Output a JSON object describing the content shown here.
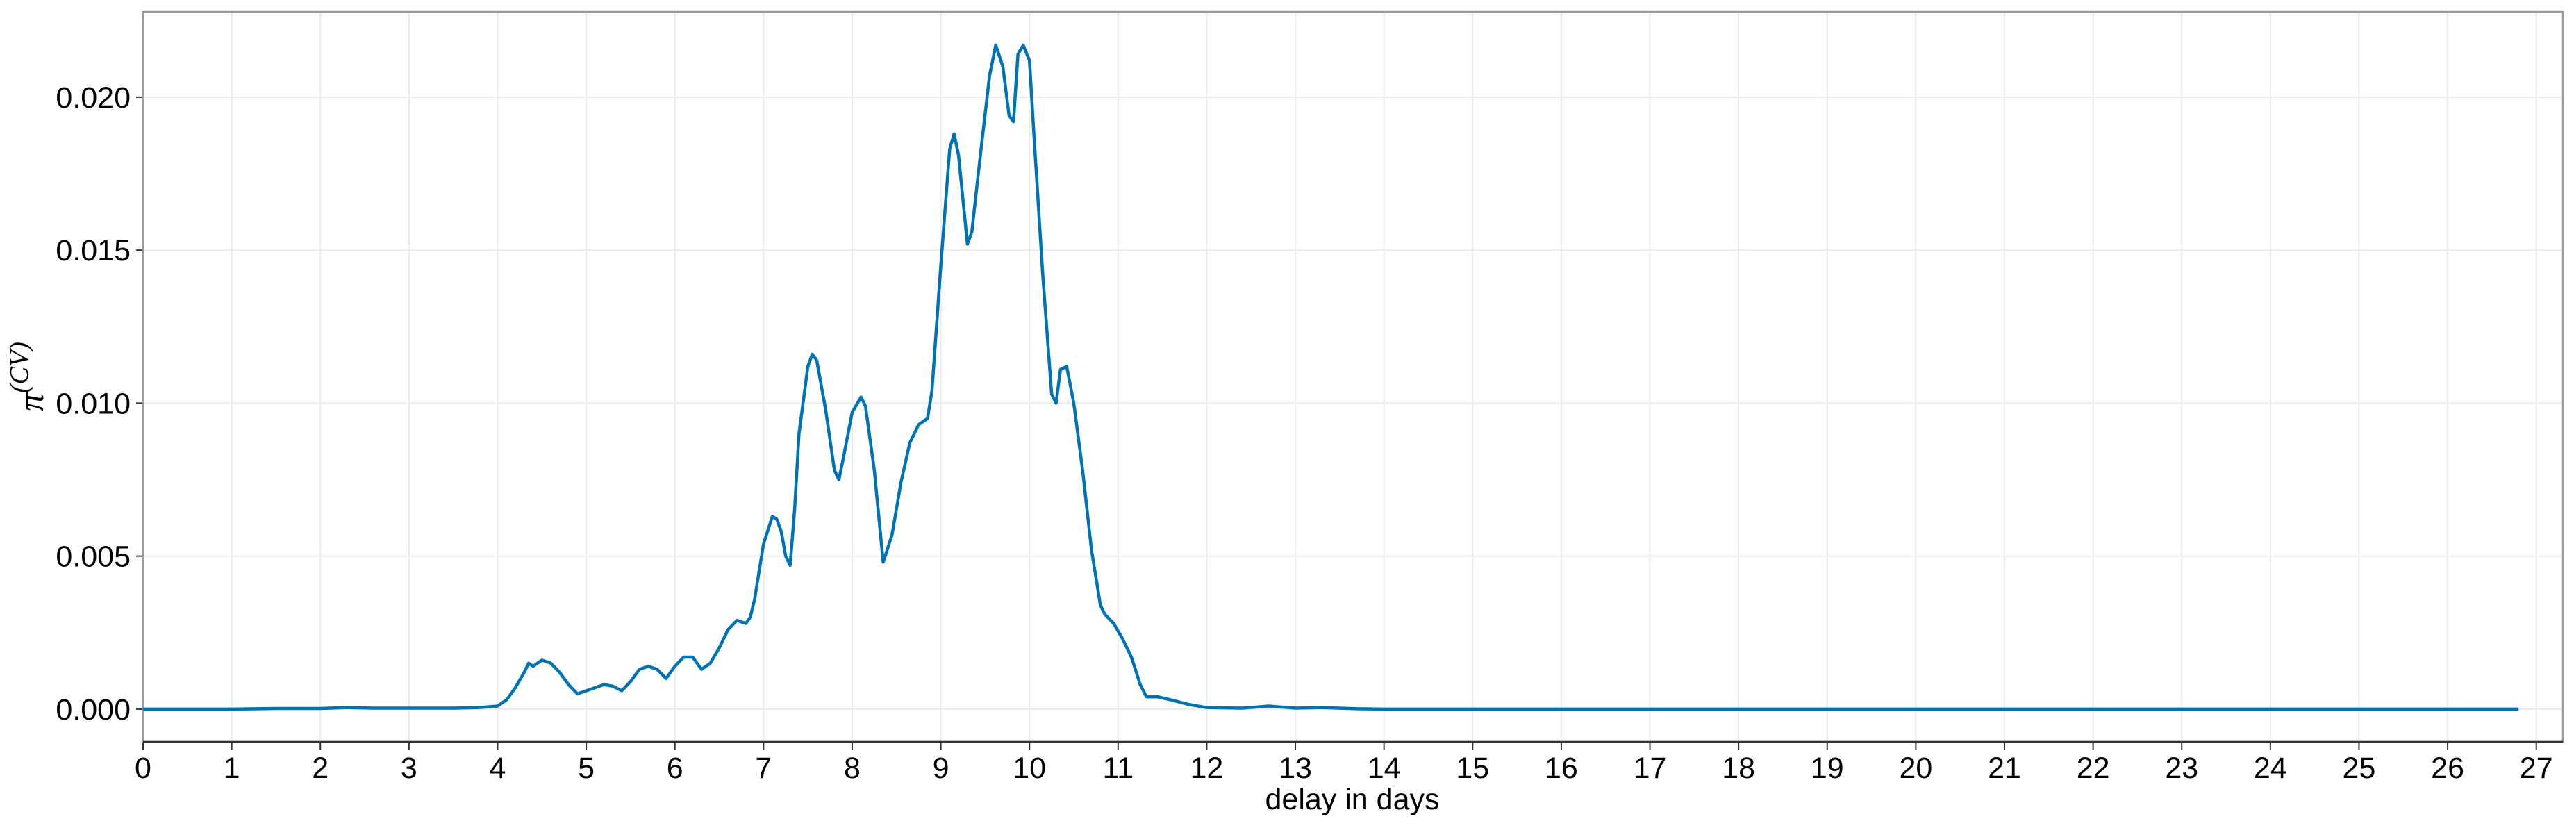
{
  "chart_data": {
    "type": "line",
    "xlabel": "delay in days",
    "ylabel": {
      "base": "π",
      "sup": "(CV)"
    },
    "color": "#0072b2",
    "grid": true,
    "xlim": [
      0,
      27.3
    ],
    "ylim": [
      -0.00107,
      0.02279
    ],
    "xticks": [
      0,
      1,
      2,
      3,
      4,
      5,
      6,
      7,
      8,
      9,
      10,
      11,
      12,
      13,
      14,
      15,
      16,
      17,
      18,
      19,
      20,
      21,
      22,
      23,
      24,
      25,
      26,
      27
    ],
    "yticks": [
      {
        "value": 0,
        "label": "0.000"
      },
      {
        "value": 0.005,
        "label": "0.005"
      },
      {
        "value": 0.01,
        "label": "0.010"
      },
      {
        "value": 0.015,
        "label": "0.015"
      },
      {
        "value": 0.02,
        "label": "0.020"
      }
    ],
    "x": [
      0,
      1,
      1.5,
      2,
      2.3,
      2.6,
      3,
      3.5,
      3.8,
      4.0,
      4.1,
      4.2,
      4.3,
      4.35,
      4.4,
      4.5,
      4.6,
      4.7,
      4.8,
      4.9,
      5.0,
      5.1,
      5.2,
      5.3,
      5.4,
      5.5,
      5.6,
      5.7,
      5.8,
      5.9,
      6.0,
      6.1,
      6.2,
      6.3,
      6.4,
      6.5,
      6.6,
      6.7,
      6.8,
      6.85,
      6.9,
      7.0,
      7.1,
      7.15,
      7.2,
      7.25,
      7.3,
      7.35,
      7.4,
      7.5,
      7.55,
      7.6,
      7.7,
      7.8,
      7.85,
      7.9,
      8.0,
      8.1,
      8.15,
      8.25,
      8.35,
      8.45,
      8.55,
      8.65,
      8.75,
      8.85,
      8.9,
      9.0,
      9.1,
      9.15,
      9.2,
      9.3,
      9.35,
      9.45,
      9.55,
      9.62,
      9.7,
      9.77,
      9.82,
      9.87,
      9.93,
      10.0,
      10.05,
      10.15,
      10.25,
      10.3,
      10.35,
      10.42,
      10.5,
      10.6,
      10.7,
      10.8,
      10.85,
      10.95,
      11.05,
      11.15,
      11.25,
      11.32,
      11.45,
      11.6,
      11.8,
      12.0,
      12.4,
      12.7,
      13.0,
      13.3,
      13.7,
      14,
      26.8
    ],
    "values": [
      0,
      0,
      2e-05,
      2e-05,
      5e-05,
      3e-05,
      3e-05,
      3e-05,
      5e-05,
      0.0001,
      0.0003,
      0.0007,
      0.0012,
      0.0015,
      0.0014,
      0.0016,
      0.0015,
      0.0012,
      0.0008,
      0.0005,
      0.0006,
      0.0007,
      0.0008,
      0.00075,
      0.0006,
      0.0009,
      0.0013,
      0.0014,
      0.0013,
      0.001,
      0.0014,
      0.0017,
      0.0017,
      0.0013,
      0.0015,
      0.002,
      0.0026,
      0.0029,
      0.0028,
      0.003,
      0.0036,
      0.0054,
      0.0063,
      0.0062,
      0.0058,
      0.005,
      0.0047,
      0.0065,
      0.009,
      0.0112,
      0.0116,
      0.0114,
      0.0098,
      0.0078,
      0.0075,
      0.0082,
      0.0097,
      0.0102,
      0.0099,
      0.0078,
      0.0048,
      0.0057,
      0.0074,
      0.0087,
      0.0093,
      0.0095,
      0.0104,
      0.0145,
      0.0183,
      0.0188,
      0.0181,
      0.0152,
      0.0156,
      0.0182,
      0.0207,
      0.0217,
      0.021,
      0.0194,
      0.0192,
      0.0214,
      0.0217,
      0.0212,
      0.0188,
      0.0142,
      0.0103,
      0.01,
      0.0111,
      0.0112,
      0.01,
      0.0078,
      0.0052,
      0.0034,
      0.0031,
      0.0028,
      0.0023,
      0.0017,
      0.0008,
      0.0004,
      0.0004,
      0.0003,
      0.00015,
      5e-05,
      3e-05,
      0.0001,
      3e-05,
      5e-05,
      1e-05,
      0,
      0
    ]
  }
}
